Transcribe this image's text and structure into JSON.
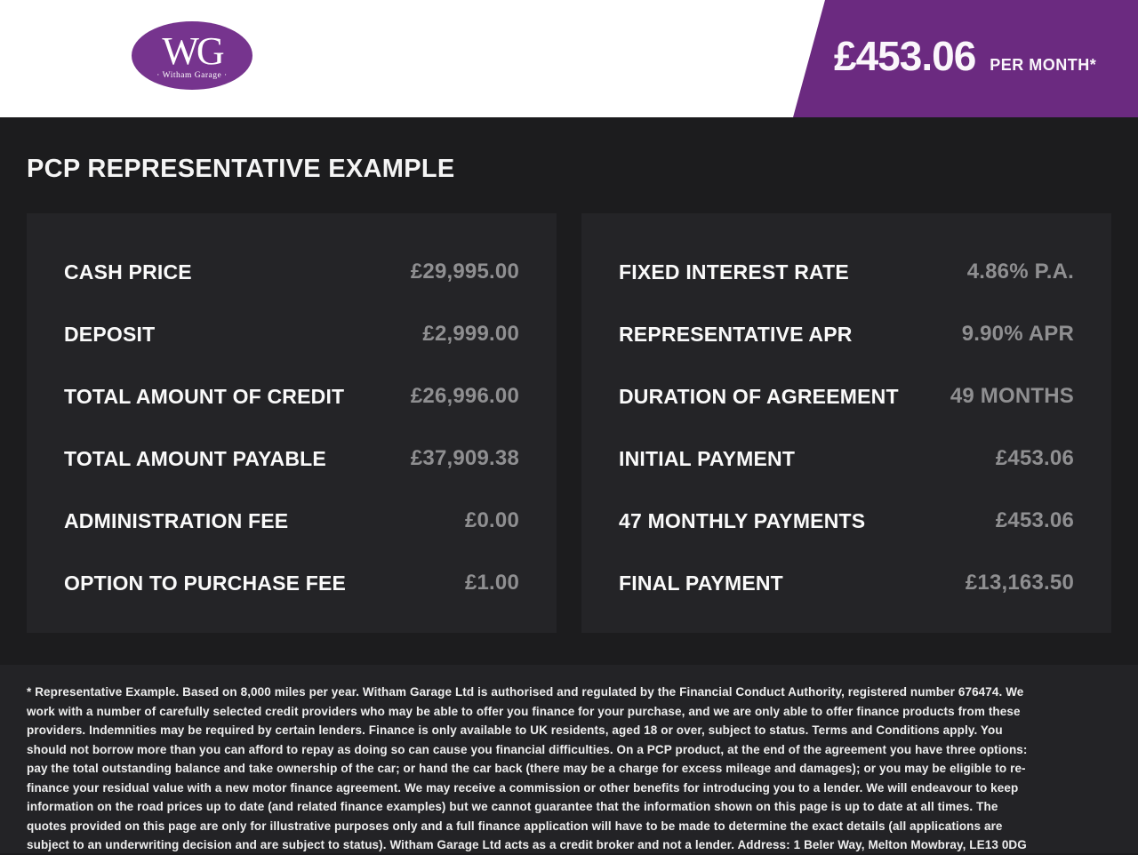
{
  "header": {
    "logo": {
      "monogram": "WG",
      "name": "· Witham Garage ·"
    },
    "price_banner": {
      "amount": "£453.06",
      "period": "PER MONTH*"
    }
  },
  "page_title": "PCP REPRESENTATIVE EXAMPLE",
  "panels": {
    "left": {
      "rows": [
        {
          "label": "CASH PRICE",
          "value": "£29,995.00"
        },
        {
          "label": "DEPOSIT",
          "value": "£2,999.00"
        },
        {
          "label": "TOTAL AMOUNT OF CREDIT",
          "value": "£26,996.00"
        },
        {
          "label": "TOTAL AMOUNT PAYABLE",
          "value": "£37,909.38"
        },
        {
          "label": "ADMINISTRATION FEE",
          "value": "£0.00"
        },
        {
          "label": "OPTION TO PURCHASE FEE",
          "value": "£1.00"
        }
      ]
    },
    "right": {
      "rows": [
        {
          "label": "FIXED INTEREST RATE",
          "value": "4.86% P.A."
        },
        {
          "label": "REPRESENTATIVE APR",
          "value": "9.90% APR"
        },
        {
          "label": "DURATION OF AGREEMENT",
          "value": "49 MONTHS"
        },
        {
          "label": "INITIAL PAYMENT",
          "value": "£453.06"
        },
        {
          "label": "47 MONTHLY PAYMENTS",
          "value": "£453.06"
        },
        {
          "label": "FINAL PAYMENT",
          "value": "£13,163.50"
        }
      ]
    }
  },
  "footer": {
    "disclaimer": "* Representative Example. Based on 8,000 miles per year. Witham Garage Ltd is authorised and regulated by the Financial Conduct Authority, registered number 676474. We work with a number of carefully selected credit providers who may be able to offer you finance for your purchase, and we are only able to offer finance products from these providers. Indemnities may be required by certain lenders. Finance is only available to UK residents, aged 18 or over, subject to status. Terms and Conditions apply. You should not borrow more than you can afford to repay as doing so can cause you financial difficulties. On a PCP product, at the end of the agreement you have three options: pay the total outstanding balance and take ownership of the car; or hand the car back (there may be a charge for excess mileage and damages); or you may be eligible to re-finance your residual value with a new motor finance agreement. We may receive a commission or other benefits for introducing you to a lender. We will endeavour to keep information on the road prices up to date (and related finance examples) but we cannot guarantee that the information shown on this page is up to date at all times. The quotes provided on this page are only for illustrative purposes only and a full finance application will have to be made to determine the exact details (all applications are subject to an underwriting decision and are subject to status). Witham Garage Ltd acts as a credit broker and not a lender. Address: 1 Beler Way, Melton Mowbray, LE13 0DG"
  },
  "colors": {
    "brand_purple": "#6b2a80",
    "logo_purple": "#76348e",
    "value_grey": "#8f8f91",
    "page_background": "#1c1c1e",
    "panel_background": "#242427"
  }
}
